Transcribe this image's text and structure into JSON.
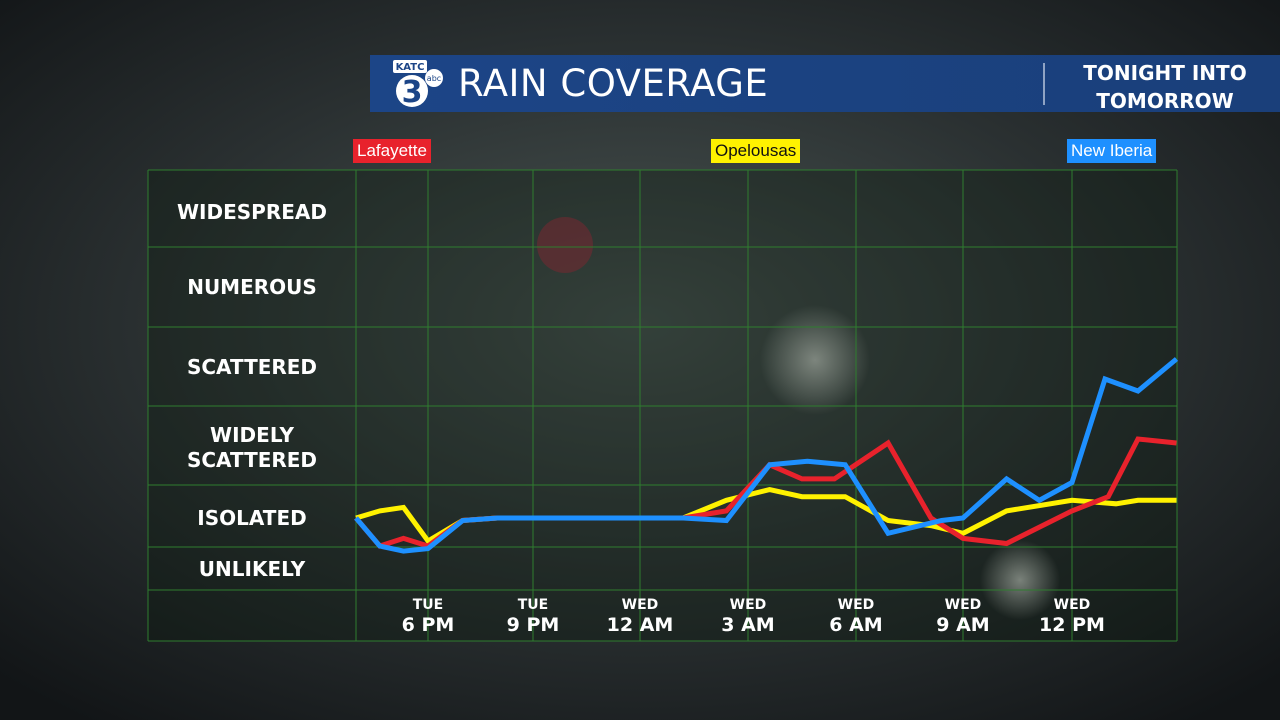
{
  "header": {
    "logo_text": "KATC",
    "logo_number": "3",
    "logo_sub": "abc",
    "title": "RAIN COVERAGE",
    "subtitle_line1": "TONIGHT INTO",
    "subtitle_line2": "TOMORROW",
    "color": "#1c4587"
  },
  "locations": [
    {
      "name": "Lafayette",
      "bg": "#e8222c",
      "fg": "#ffffff"
    },
    {
      "name": "Opelousas",
      "bg": "#fff200",
      "fg": "#111111"
    },
    {
      "name": "New Iberia",
      "bg": "#1e90ff",
      "fg": "#ffffff"
    }
  ],
  "chart_data": {
    "type": "line",
    "y_categories": [
      "WIDESPREAD",
      "NUMEROUS",
      "SCATTERED",
      "WIDELY SCATTERED",
      "ISOLATED",
      "UNLIKELY"
    ],
    "y_levels": [
      6,
      5,
      4,
      3,
      2,
      1
    ],
    "x_ticks": [
      {
        "day": "TUE",
        "time": "6 PM",
        "x": 1
      },
      {
        "day": "TUE",
        "time": "9 PM",
        "x": 2
      },
      {
        "day": "WED",
        "time": "12 AM",
        "x": 3
      },
      {
        "day": "WED",
        "time": "3 AM",
        "x": 4
      },
      {
        "day": "WED",
        "time": "6 AM",
        "x": 5
      },
      {
        "day": "WED",
        "time": "9 AM",
        "x": 6
      },
      {
        "day": "WED",
        "time": "12 PM",
        "x": 7
      }
    ],
    "xlim": [
      0,
      7.95
    ],
    "ylim": [
      0.5,
      6.5
    ],
    "grid": true,
    "series": [
      {
        "name": "Opelousas",
        "color": "#fff200",
        "x": [
          0,
          0.33,
          0.66,
          1.0,
          1.33,
          1.66,
          2.0,
          3.4,
          3.8,
          4.2,
          4.5,
          4.6,
          4.9,
          5.3,
          5.7,
          6.0,
          6.4,
          7.0,
          7.4,
          7.6,
          7.95
        ],
        "y": [
          2.0,
          2.1,
          2.15,
          1.55,
          1.95,
          2.0,
          2.0,
          2.0,
          2.25,
          2.4,
          2.3,
          2.3,
          2.3,
          1.95,
          1.85,
          1.7,
          2.1,
          2.25,
          2.2,
          2.25,
          2.25
        ]
      },
      {
        "name": "Lafayette",
        "color": "#e8222c",
        "x": [
          0,
          0.33,
          0.66,
          1.0,
          1.33,
          1.66,
          2.0,
          3.4,
          3.8,
          4.2,
          4.5,
          4.8,
          5.3,
          5.7,
          6.0,
          6.4,
          7.0,
          7.33,
          7.6,
          7.95
        ],
        "y": [
          2.0,
          1.45,
          1.6,
          1.45,
          1.95,
          2.0,
          2.0,
          2.0,
          2.1,
          2.75,
          2.55,
          2.55,
          3.05,
          2.0,
          1.6,
          1.5,
          2.1,
          2.3,
          3.1,
          3.05
        ],
        "note": "dummy"
      },
      {
        "name": "New Iberia",
        "color": "#1e90ff",
        "x": [
          0,
          0.33,
          0.66,
          1.0,
          1.33,
          1.66,
          2.0,
          3.4,
          3.8,
          4.2,
          4.55,
          4.9,
          5.3,
          5.8,
          6.0,
          6.4,
          6.7,
          7.0,
          7.3,
          7.6,
          7.95
        ],
        "y": [
          2.0,
          1.45,
          1.35,
          1.4,
          1.95,
          2.0,
          2.0,
          2.0,
          1.95,
          2.75,
          2.8,
          2.75,
          1.7,
          1.95,
          2.0,
          2.55,
          2.25,
          2.5,
          3.85,
          3.7,
          4.1
        ]
      }
    ]
  }
}
